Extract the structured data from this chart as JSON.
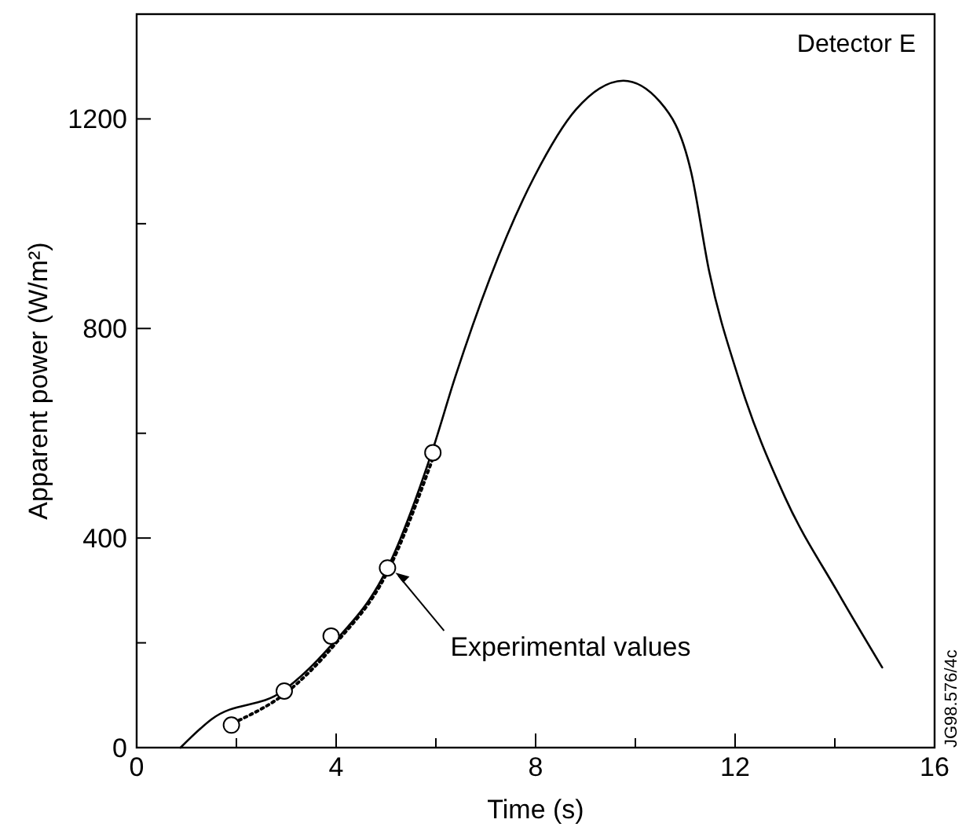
{
  "chart_data": {
    "type": "line",
    "xlabel": "Time (s)",
    "ylabel": "Apparent power (W/m²)",
    "xlim": [
      0,
      16
    ],
    "ylim": [
      0,
      1400
    ],
    "xticks": [
      0,
      {
        "value": 2,
        "label": null
      },
      4,
      {
        "value": 6,
        "label": null
      },
      8,
      {
        "value": 10,
        "label": null
      },
      12,
      {
        "value": 14,
        "label": null
      },
      16
    ],
    "yticks": [
      0,
      {
        "value": 200,
        "label": null
      },
      400,
      {
        "value": 600,
        "label": null
      },
      800,
      {
        "value": 1000,
        "label": null
      },
      1200
    ],
    "grid": false,
    "series": [
      {
        "color": "#000000",
        "line_style": "solid",
        "marker": "none",
        "x": [
          0.88,
          1.5,
          2.93,
          3.87,
          5.03,
          5.92,
          6.39,
          7.97,
          8.81,
          9.76,
          10.49,
          11.12,
          11.48,
          12.06,
          13.0,
          14.05,
          14.95
        ],
        "values": [
          0,
          54,
          108,
          192,
          343,
          564,
          708,
          1089,
          1218,
          1273,
          1233,
          1098,
          909,
          708,
          478,
          298,
          153
        ]
      },
      {
        "color": "#000000",
        "line_style": "dotted",
        "marker": "none",
        "x": [
          2.05,
          3.0,
          4.0,
          5.0,
          5.95
        ],
        "values": [
          52,
          105,
          200,
          330,
          555
        ]
      },
      {
        "type": "scatter",
        "color": "#000000",
        "marker": "circle",
        "x": [
          1.9,
          2.96,
          3.9,
          5.03,
          5.94
        ],
        "values": [
          43,
          108,
          213,
          343,
          563
        ]
      }
    ],
    "annotations": [
      "Detector E",
      {
        "text": "Experimental values",
        "x": 5.03,
        "y": 343
      },
      "JG98.576/4c"
    ]
  }
}
